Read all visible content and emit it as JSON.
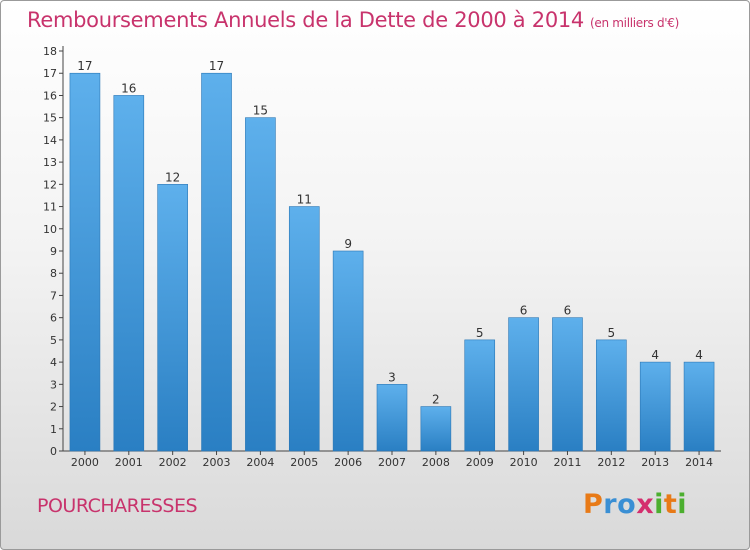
{
  "title": {
    "main": "Remboursements Annuels de la Dette de 2000 à 2014",
    "sub": "(en milliers d'€)"
  },
  "commune": "POURCHARESSES",
  "logo": {
    "letters": [
      "P",
      "r",
      "o",
      "x",
      "i",
      "t",
      "i"
    ],
    "colors": [
      "#e87a17",
      "#3a8fd4",
      "#3a8fd4",
      "#d42f6e",
      "#4caf2f",
      "#e87a17",
      "#4caf2f"
    ]
  },
  "colors": {
    "bar_top": "#5eb0ec",
    "bar_bottom": "#2a7fc3",
    "accent": "#c8336c"
  },
  "chart_data": {
    "type": "bar",
    "categories": [
      "2000",
      "2001",
      "2002",
      "2003",
      "2004",
      "2005",
      "2006",
      "2007",
      "2008",
      "2009",
      "2010",
      "2011",
      "2012",
      "2013",
      "2014"
    ],
    "values": [
      17,
      16,
      12,
      17,
      15,
      11,
      9,
      3,
      2,
      5,
      6,
      6,
      5,
      4,
      4
    ],
    "ylim": [
      0,
      18
    ],
    "yticks": [
      0,
      1,
      2,
      3,
      4,
      5,
      6,
      7,
      8,
      9,
      10,
      11,
      12,
      13,
      14,
      15,
      16,
      17,
      18
    ],
    "grid": false,
    "xlabel": "",
    "ylabel": ""
  }
}
